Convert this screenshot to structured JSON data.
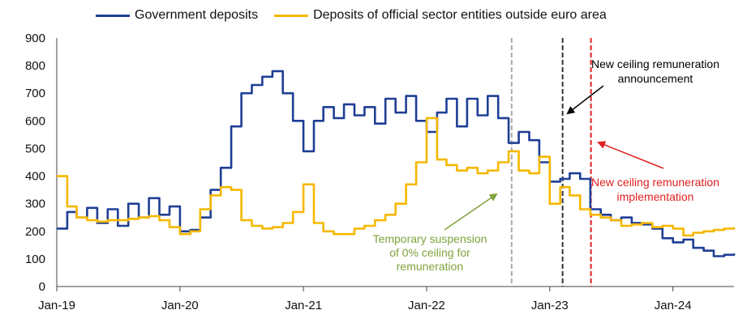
{
  "chart_data": {
    "type": "line",
    "legend_position": "top",
    "grid": false,
    "ylim": [
      0,
      900
    ],
    "yticks": [
      "0",
      "100",
      "200",
      "300",
      "400",
      "500",
      "600",
      "700",
      "800",
      "900"
    ],
    "xlim": [
      "2019-01-01",
      "2024-06-30"
    ],
    "xticks": [
      {
        "label": "Jan-19",
        "date": "2019-01-01"
      },
      {
        "label": "Jan-20",
        "date": "2020-01-01"
      },
      {
        "label": "Jan-21",
        "date": "2021-01-01"
      },
      {
        "label": "Jan-22",
        "date": "2022-01-01"
      },
      {
        "label": "Jan-23",
        "date": "2023-01-01"
      },
      {
        "label": "Jan-24",
        "date": "2024-01-01"
      }
    ],
    "series": [
      {
        "name": "Government deposits",
        "color": "#1f3f95",
        "points": [
          [
            "2019-01-01",
            210
          ],
          [
            "2019-02-01",
            270
          ],
          [
            "2019-03-01",
            250
          ],
          [
            "2019-04-01",
            285
          ],
          [
            "2019-05-01",
            230
          ],
          [
            "2019-06-01",
            280
          ],
          [
            "2019-07-01",
            220
          ],
          [
            "2019-08-01",
            300
          ],
          [
            "2019-09-01",
            250
          ],
          [
            "2019-10-01",
            320
          ],
          [
            "2019-11-01",
            260
          ],
          [
            "2019-12-01",
            290
          ],
          [
            "2020-01-01",
            200
          ],
          [
            "2020-02-01",
            205
          ],
          [
            "2020-03-01",
            250
          ],
          [
            "2020-04-01",
            350
          ],
          [
            "2020-05-01",
            430
          ],
          [
            "2020-06-01",
            580
          ],
          [
            "2020-07-01",
            700
          ],
          [
            "2020-08-01",
            730
          ],
          [
            "2020-09-01",
            760
          ],
          [
            "2020-10-01",
            780
          ],
          [
            "2020-11-01",
            700
          ],
          [
            "2020-12-01",
            600
          ],
          [
            "2021-01-01",
            490
          ],
          [
            "2021-02-01",
            600
          ],
          [
            "2021-03-01",
            650
          ],
          [
            "2021-04-01",
            610
          ],
          [
            "2021-05-01",
            660
          ],
          [
            "2021-06-01",
            620
          ],
          [
            "2021-07-01",
            650
          ],
          [
            "2021-08-01",
            590
          ],
          [
            "2021-09-01",
            680
          ],
          [
            "2021-10-01",
            630
          ],
          [
            "2021-11-01",
            690
          ],
          [
            "2021-12-01",
            600
          ],
          [
            "2022-01-01",
            560
          ],
          [
            "2022-02-01",
            630
          ],
          [
            "2022-03-01",
            680
          ],
          [
            "2022-04-01",
            580
          ],
          [
            "2022-05-01",
            680
          ],
          [
            "2022-06-01",
            620
          ],
          [
            "2022-07-01",
            690
          ],
          [
            "2022-08-01",
            610
          ],
          [
            "2022-09-01",
            520
          ],
          [
            "2022-10-01",
            560
          ],
          [
            "2022-11-01",
            530
          ],
          [
            "2022-12-01",
            450
          ],
          [
            "2023-01-01",
            380
          ],
          [
            "2023-02-01",
            390
          ],
          [
            "2023-03-01",
            410
          ],
          [
            "2023-04-01",
            390
          ],
          [
            "2023-05-01",
            280
          ],
          [
            "2023-06-01",
            260
          ],
          [
            "2023-07-01",
            240
          ],
          [
            "2023-08-01",
            250
          ],
          [
            "2023-09-01",
            230
          ],
          [
            "2023-10-01",
            225
          ],
          [
            "2023-11-01",
            210
          ],
          [
            "2023-12-01",
            175
          ],
          [
            "2024-01-01",
            160
          ],
          [
            "2024-02-01",
            170
          ],
          [
            "2024-03-01",
            140
          ],
          [
            "2024-04-01",
            130
          ],
          [
            "2024-05-01",
            110
          ],
          [
            "2024-06-01",
            115
          ],
          [
            "2024-06-30",
            120
          ]
        ]
      },
      {
        "name": "Deposits of official sector entities outside euro area",
        "color": "#f5b800",
        "points": [
          [
            "2019-01-01",
            400
          ],
          [
            "2019-02-01",
            290
          ],
          [
            "2019-03-01",
            250
          ],
          [
            "2019-04-01",
            240
          ],
          [
            "2019-05-01",
            235
          ],
          [
            "2019-06-01",
            240
          ],
          [
            "2019-07-01",
            240
          ],
          [
            "2019-08-01",
            245
          ],
          [
            "2019-09-01",
            250
          ],
          [
            "2019-10-01",
            255
          ],
          [
            "2019-11-01",
            240
          ],
          [
            "2019-12-01",
            215
          ],
          [
            "2020-01-01",
            190
          ],
          [
            "2020-02-01",
            200
          ],
          [
            "2020-03-01",
            280
          ],
          [
            "2020-04-01",
            330
          ],
          [
            "2020-05-01",
            360
          ],
          [
            "2020-06-01",
            350
          ],
          [
            "2020-07-01",
            240
          ],
          [
            "2020-08-01",
            220
          ],
          [
            "2020-09-01",
            210
          ],
          [
            "2020-10-01",
            215
          ],
          [
            "2020-11-01",
            230
          ],
          [
            "2020-12-01",
            270
          ],
          [
            "2021-01-01",
            370
          ],
          [
            "2021-02-01",
            230
          ],
          [
            "2021-03-01",
            200
          ],
          [
            "2021-04-01",
            190
          ],
          [
            "2021-05-01",
            190
          ],
          [
            "2021-06-01",
            210
          ],
          [
            "2021-07-01",
            220
          ],
          [
            "2021-08-01",
            240
          ],
          [
            "2021-09-01",
            260
          ],
          [
            "2021-10-01",
            300
          ],
          [
            "2021-11-01",
            370
          ],
          [
            "2021-12-01",
            450
          ],
          [
            "2022-01-01",
            610
          ],
          [
            "2022-02-01",
            460
          ],
          [
            "2022-03-01",
            440
          ],
          [
            "2022-04-01",
            420
          ],
          [
            "2022-05-01",
            430
          ],
          [
            "2022-06-01",
            410
          ],
          [
            "2022-07-01",
            420
          ],
          [
            "2022-08-01",
            450
          ],
          [
            "2022-09-01",
            490
          ],
          [
            "2022-10-01",
            420
          ],
          [
            "2022-11-01",
            410
          ],
          [
            "2022-12-01",
            470
          ],
          [
            "2023-01-01",
            300
          ],
          [
            "2023-02-01",
            360
          ],
          [
            "2023-03-01",
            330
          ],
          [
            "2023-04-01",
            280
          ],
          [
            "2023-05-01",
            260
          ],
          [
            "2023-06-01",
            250
          ],
          [
            "2023-07-01",
            240
          ],
          [
            "2023-08-01",
            220
          ],
          [
            "2023-09-01",
            225
          ],
          [
            "2023-10-01",
            230
          ],
          [
            "2023-11-01",
            215
          ],
          [
            "2023-12-01",
            220
          ],
          [
            "2024-01-01",
            210
          ],
          [
            "2024-02-01",
            185
          ],
          [
            "2024-03-01",
            195
          ],
          [
            "2024-04-01",
            200
          ],
          [
            "2024-05-01",
            205
          ],
          [
            "2024-06-01",
            210
          ],
          [
            "2024-06-30",
            215
          ]
        ]
      }
    ],
    "vlines": [
      {
        "name": "temporary-suspension-line",
        "date": "2022-09-10",
        "color": "#aaaaaa"
      },
      {
        "name": "announcement-line",
        "date": "2023-02-08",
        "color": "#333333"
      },
      {
        "name": "implementation-line",
        "date": "2023-05-03",
        "color": "#e02020"
      }
    ],
    "annotations": [
      {
        "name": "announcement-annotation",
        "lines": [
          "New ceiling remuneration",
          "announcement"
        ],
        "color": "#000000"
      },
      {
        "name": "implementation-annotation",
        "lines": [
          "New ceiling remuneration",
          "implementation"
        ],
        "color": "#e02020"
      },
      {
        "name": "suspension-annotation",
        "lines": [
          "Temporary suspension",
          "of 0% ceiling for",
          "remuneration"
        ],
        "color": "#7fa33b"
      }
    ]
  }
}
